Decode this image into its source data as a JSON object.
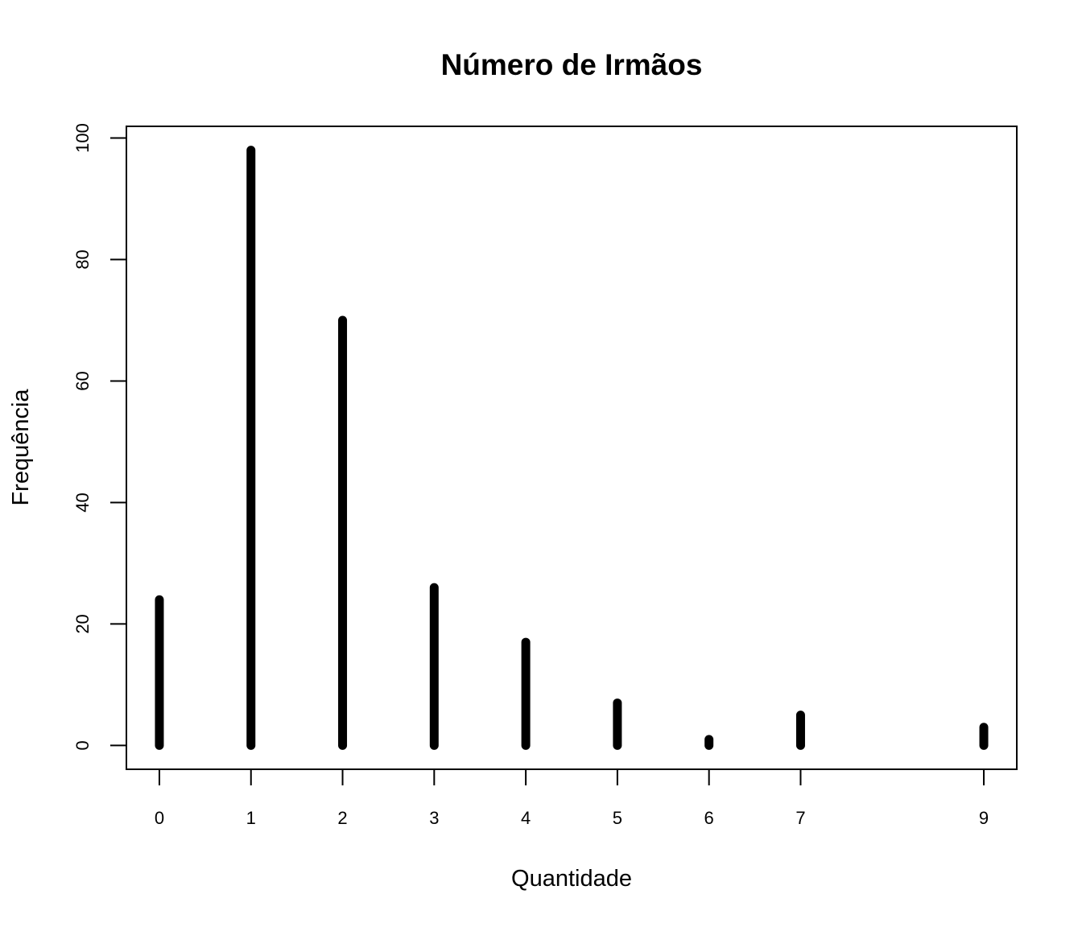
{
  "chart_data": {
    "type": "bar",
    "title": "Número de Irmãos",
    "xlabel": "Quantidade",
    "ylabel": "Frequência",
    "x": [
      0,
      1,
      2,
      3,
      4,
      5,
      6,
      7,
      9
    ],
    "x_tick_labels": [
      "0",
      "1",
      "2",
      "3",
      "4",
      "5",
      "6",
      "7",
      "9"
    ],
    "values": [
      24,
      98,
      70,
      26,
      17,
      7,
      1,
      5,
      3
    ],
    "y_ticks": [
      0,
      20,
      40,
      60,
      80,
      100
    ],
    "y_tick_labels": [
      "0",
      "20",
      "40",
      "60",
      "80",
      "100"
    ],
    "xlim": [
      -0.36,
      9.36
    ],
    "ylim": [
      -3.92,
      101.92
    ],
    "grid": false,
    "bar_color": "#000000"
  }
}
